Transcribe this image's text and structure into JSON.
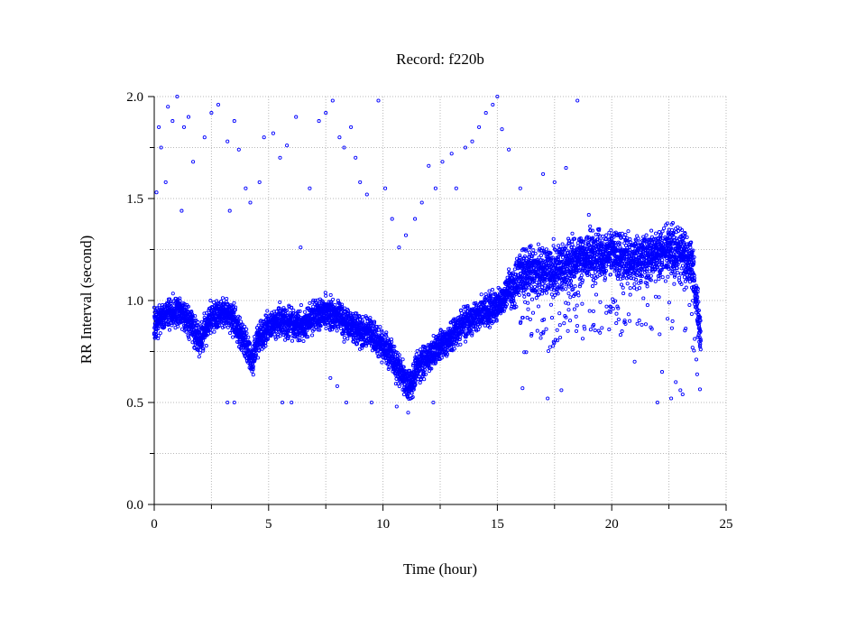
{
  "chart_data": {
    "type": "scatter",
    "title": "Record:  f220b",
    "xlabel": "Time (hour)",
    "ylabel": "RR Interval (second)",
    "xlim": [
      0,
      25
    ],
    "ylim": [
      0,
      2
    ],
    "x_ticks": [
      "0",
      "5",
      "10",
      "15",
      "20",
      "25"
    ],
    "y_ticks": [
      "0.0",
      "0.5",
      "1.0",
      "1.5",
      "2.0"
    ],
    "grid": true,
    "series_color": "#0000ff",
    "series": [
      {
        "trend_x": [
          0,
          0.5,
          1,
          1.5,
          2,
          2.5,
          3,
          3.5,
          4,
          4.3,
          4.5,
          5,
          5.5,
          6,
          6.5,
          7,
          7.5,
          8,
          8.5,
          9,
          9.5,
          10,
          10.5,
          11,
          11.3,
          11.5,
          12,
          12.5,
          13,
          13.5,
          14,
          14.5,
          15,
          15.5,
          16,
          16.5,
          17,
          17.5,
          18,
          18.5,
          19,
          19.5,
          20,
          20.5,
          21,
          21.5,
          22,
          22.5,
          23,
          23.5,
          23.9
        ],
        "trend_y": [
          0.88,
          0.93,
          0.95,
          0.9,
          0.8,
          0.92,
          0.95,
          0.9,
          0.78,
          0.7,
          0.8,
          0.87,
          0.9,
          0.88,
          0.88,
          0.92,
          0.95,
          0.92,
          0.88,
          0.85,
          0.83,
          0.78,
          0.7,
          0.6,
          0.6,
          0.68,
          0.72,
          0.78,
          0.83,
          0.88,
          0.92,
          0.95,
          0.97,
          1.05,
          1.12,
          1.15,
          1.15,
          1.15,
          1.18,
          1.2,
          1.22,
          1.22,
          1.24,
          1.2,
          1.2,
          1.22,
          1.22,
          1.24,
          1.23,
          1.2,
          0.8
        ],
        "outliers_x": [
          0.1,
          0.2,
          0.3,
          0.5,
          0.6,
          0.8,
          1.0,
          1.2,
          1.3,
          1.5,
          1.7,
          2.2,
          2.5,
          2.8,
          3.2,
          3.3,
          3.5,
          3.7,
          4.0,
          4.2,
          4.6,
          4.8,
          5.2,
          5.5,
          5.8,
          6.2,
          6.4,
          6.8,
          7.2,
          7.5,
          7.8,
          8.1,
          8.3,
          8.6,
          8.8,
          9.0,
          9.3,
          9.8,
          10.1,
          10.4,
          10.7,
          11.0,
          11.4,
          11.7,
          12.0,
          12.3,
          12.6,
          13.0,
          13.2,
          13.6,
          13.9,
          14.2,
          14.5,
          14.8,
          15.0,
          15.2,
          15.5,
          16.0,
          17.0,
          17.5,
          18.0,
          18.5,
          19.0,
          21.0,
          22.2,
          22.8,
          23.0,
          3.2,
          3.5,
          8.0,
          8.4,
          9.5,
          10.6,
          11.1,
          12.2,
          16.1,
          17.2,
          17.8,
          22.0,
          22.6,
          23.1,
          7.7,
          6.0,
          5.6
        ],
        "outliers_y": [
          1.53,
          1.85,
          1.75,
          1.58,
          1.95,
          1.88,
          2.0,
          1.44,
          1.85,
          1.9,
          1.68,
          1.8,
          1.92,
          1.96,
          1.78,
          1.44,
          1.88,
          1.74,
          1.55,
          1.48,
          1.58,
          1.8,
          1.82,
          1.7,
          1.76,
          1.9,
          1.26,
          1.55,
          1.88,
          1.92,
          1.98,
          1.8,
          1.75,
          1.85,
          1.7,
          1.58,
          1.52,
          1.98,
          1.55,
          1.4,
          1.26,
          1.32,
          1.4,
          1.48,
          1.66,
          1.55,
          1.68,
          1.72,
          1.55,
          1.75,
          1.78,
          1.85,
          1.92,
          1.96,
          2.0,
          1.84,
          1.74,
          1.55,
          1.62,
          1.58,
          1.65,
          1.98,
          1.42,
          0.7,
          0.65,
          0.6,
          0.56,
          0.5,
          0.5,
          0.58,
          0.5,
          0.5,
          0.48,
          0.45,
          0.5,
          0.57,
          0.52,
          0.56,
          0.5,
          0.52,
          0.54,
          0.62,
          0.5,
          0.5
        ]
      }
    ]
  }
}
